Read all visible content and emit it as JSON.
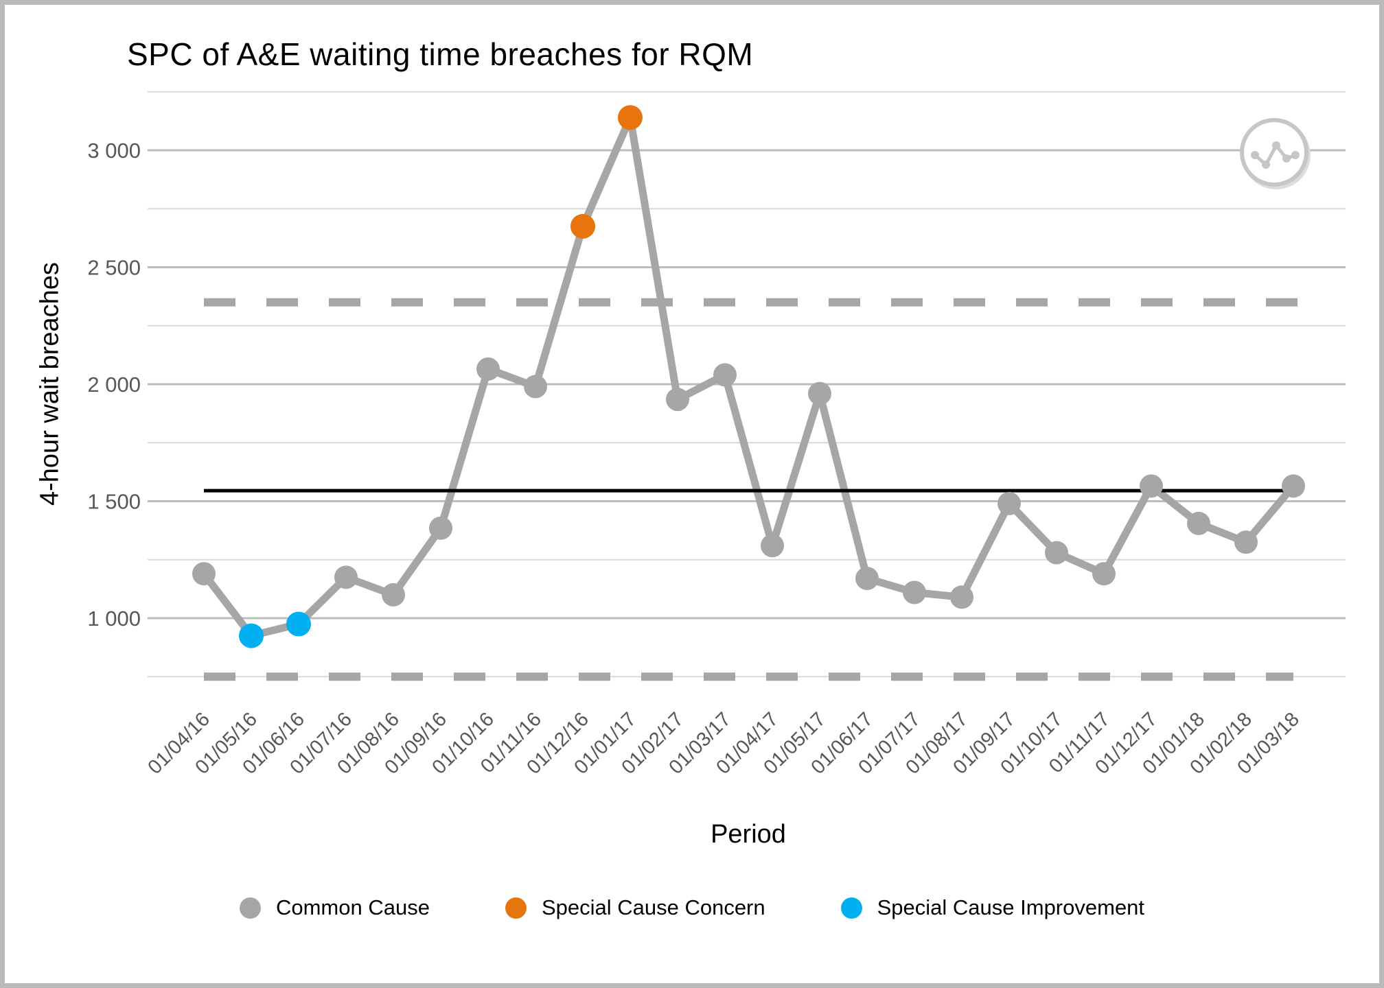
{
  "window": {
    "background": "#ffffff",
    "border_color": "#b9b9b9"
  },
  "chart_data": {
    "type": "line",
    "subtype": "spc-control-chart",
    "title": "SPC of A&E waiting time breaches for RQM",
    "xlabel": "Period",
    "ylabel": "4-hour wait breaches",
    "x": [
      "01/04/16",
      "01/05/16",
      "01/06/16",
      "01/07/16",
      "01/08/16",
      "01/09/16",
      "01/10/16",
      "01/11/16",
      "01/12/16",
      "01/01/17",
      "01/02/17",
      "01/03/17",
      "01/04/17",
      "01/05/17",
      "01/06/17",
      "01/07/17",
      "01/08/17",
      "01/09/17",
      "01/10/17",
      "01/11/17",
      "01/12/17",
      "01/01/18",
      "01/02/18",
      "01/03/18"
    ],
    "series": [
      {
        "name": "4-hour wait breaches",
        "values": [
          1190,
          925,
          975,
          1175,
          1100,
          1385,
          2065,
          1990,
          2675,
          3140,
          1935,
          2040,
          1310,
          1960,
          1170,
          1110,
          1090,
          1490,
          1280,
          1190,
          1565,
          1405,
          1325,
          1565
        ]
      }
    ],
    "point_types": [
      "common",
      "improvement",
      "improvement",
      "common",
      "common",
      "common",
      "common",
      "common",
      "concern",
      "concern",
      "common",
      "common",
      "common",
      "common",
      "common",
      "common",
      "common",
      "common",
      "common",
      "common",
      "common",
      "common",
      "common",
      "common"
    ],
    "spc_lines": {
      "center_line": 1545,
      "upper_control_limit": 2350,
      "lower_control_limit": 750
    },
    "yticks": [
      {
        "value": 1000,
        "label": "1 000"
      },
      {
        "value": 1500,
        "label": "1 500"
      },
      {
        "value": 2000,
        "label": "2 000"
      },
      {
        "value": 2500,
        "label": "2 500"
      },
      {
        "value": 3000,
        "label": "3 000"
      }
    ],
    "minor_gridlines": [
      750,
      1250,
      1750,
      2250,
      2750,
      3250
    ],
    "ylim": [
      650,
      3300
    ],
    "grid": "horizontal-only",
    "legend_position": "bottom",
    "legend": [
      {
        "label": "Common Cause",
        "color": "#a6a6a6",
        "type": "common"
      },
      {
        "label": "Special Cause Concern",
        "color": "#e8740e",
        "type": "concern"
      },
      {
        "label": "Special Cause Improvement",
        "color": "#00b0f0",
        "type": "improvement"
      }
    ]
  },
  "icon": {
    "name": "line-chart-badge",
    "color": "#c6c6c6"
  },
  "colors": {
    "common": "#a6a6a6",
    "concern": "#e8740e",
    "improvement": "#00b0f0",
    "series_line": "#a6a6a6",
    "center_line": "#000000",
    "limit_line": "#a6a6a6",
    "grid_major": "#bdbdbd",
    "grid_minor": "#d9d9d9",
    "tick_text": "#575757",
    "title_text": "#000000"
  }
}
